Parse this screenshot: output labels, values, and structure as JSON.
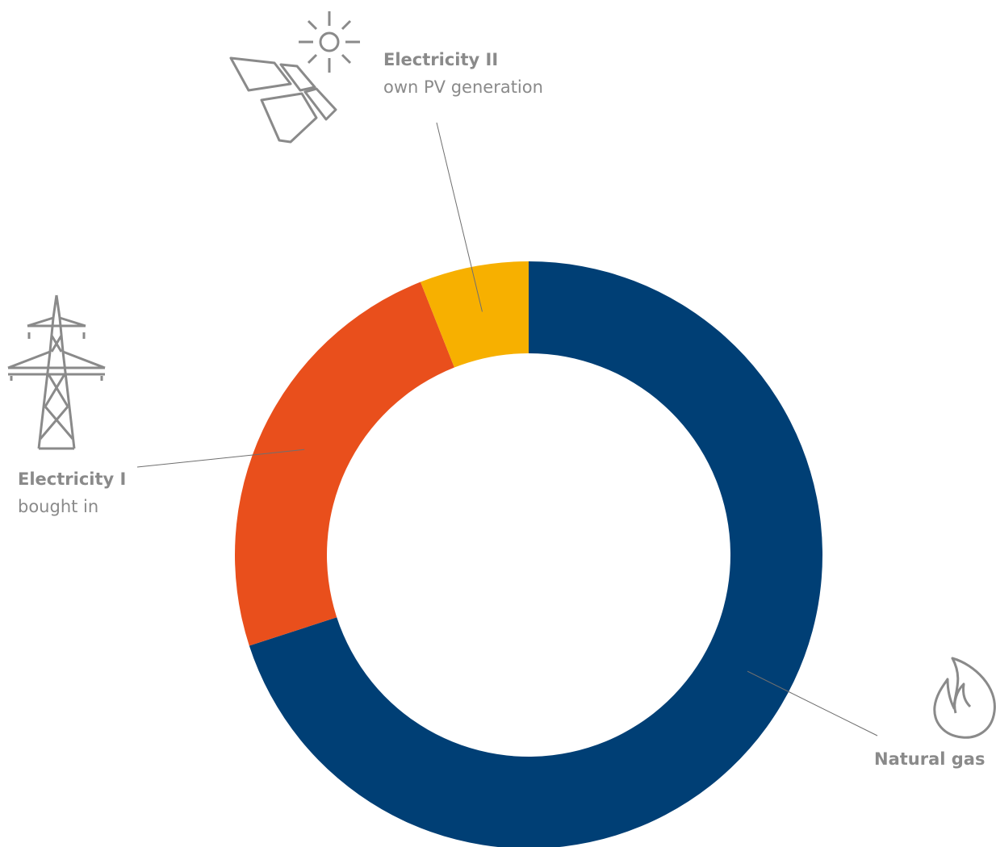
{
  "chart_data": {
    "type": "pie",
    "donut": true,
    "title": "",
    "categories": [
      "Natural gas",
      "Electricity I",
      "Electricity II"
    ],
    "slices": [
      {
        "name": "Natural gas",
        "subtitle": "",
        "value": 70.0,
        "color": "#003f75"
      },
      {
        "name": "Electricity I",
        "subtitle": "bought in",
        "value": 24.0,
        "color": "#e94f1c"
      },
      {
        "name": "Electricity II",
        "subtitle": "own PV generation",
        "value": 6.0,
        "color": "#f7b000"
      }
    ],
    "start_angle_deg": 0,
    "direction": "clockwise",
    "legend": "none",
    "icons": {
      "natural_gas": "flame-icon",
      "electricity_i": "power-pylon-icon",
      "electricity_ii": "solar-panel-icon"
    },
    "label_color": "#8a8a8a"
  }
}
